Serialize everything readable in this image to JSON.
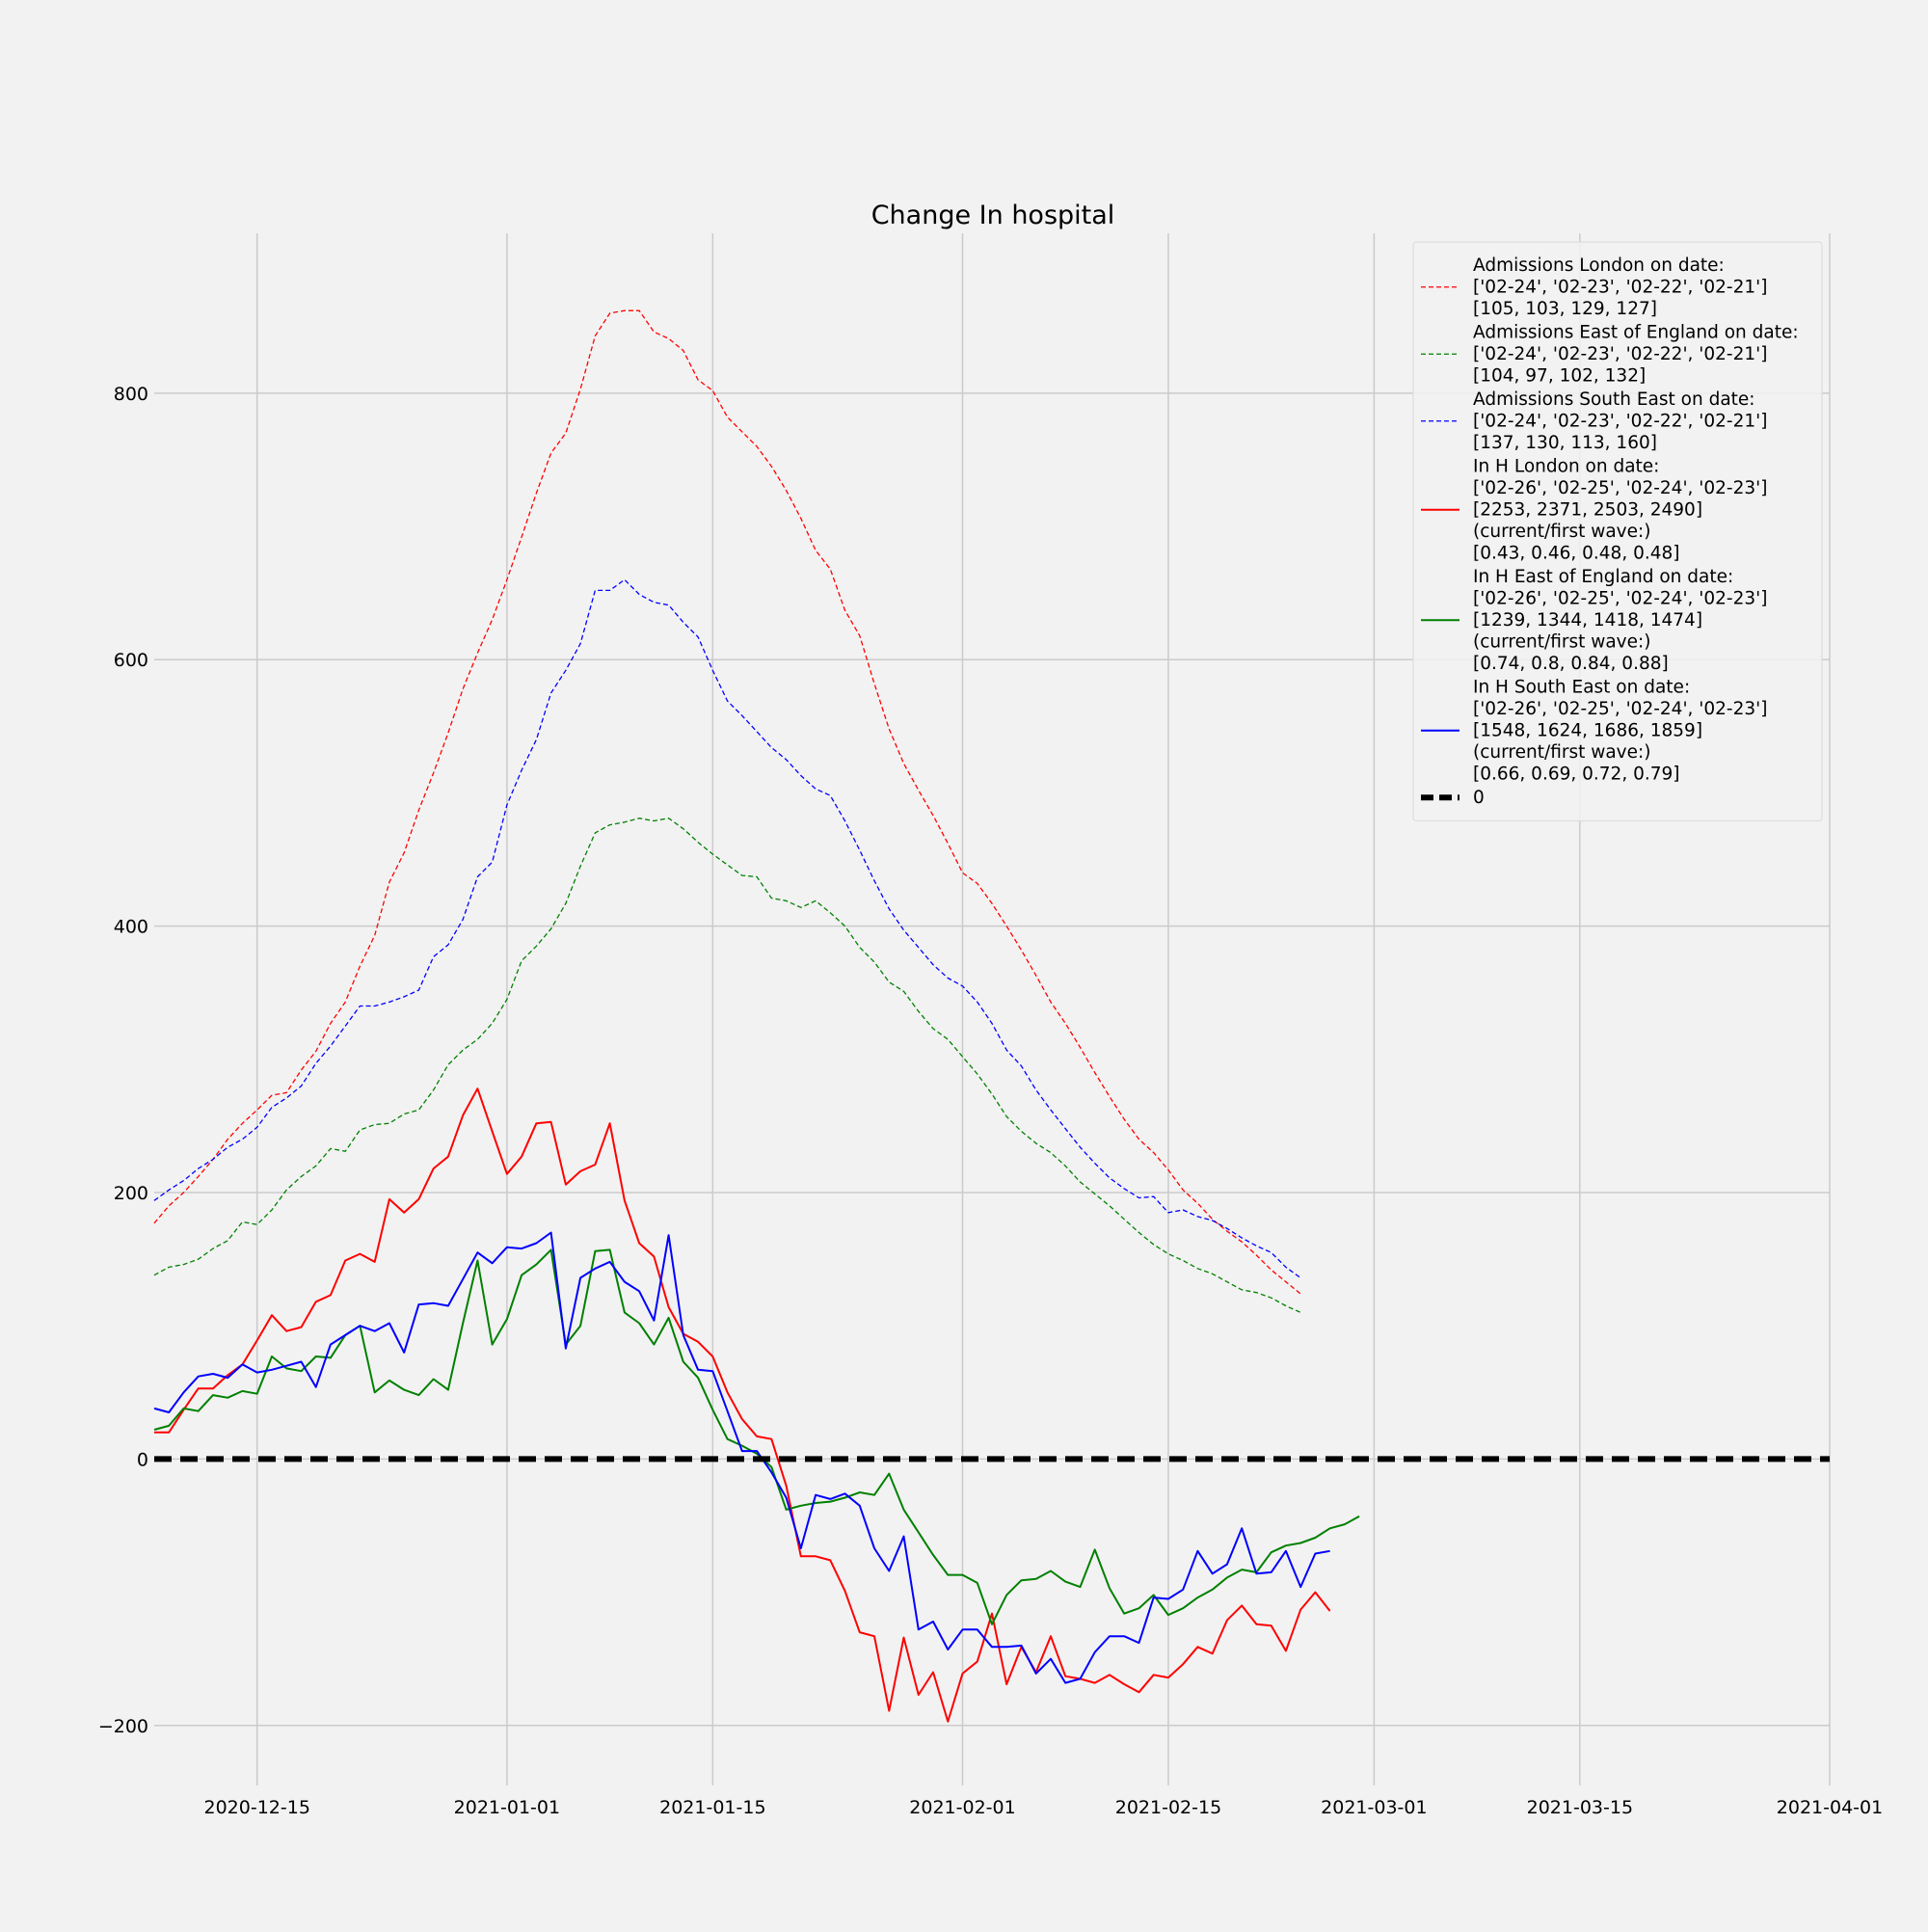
{
  "chart_data": {
    "type": "line",
    "title": "Change In hospital",
    "xlabel": "",
    "ylabel": "",
    "x_axis_type": "date",
    "x_range": [
      "2020-12-08",
      "2021-04-01"
    ],
    "ylim": [
      -245,
      920
    ],
    "x_ticks": [
      "2020-12-15",
      "2021-01-01",
      "2021-01-15",
      "2021-02-01",
      "2021-02-15",
      "2021-03-01",
      "2021-03-15",
      "2021-04-01"
    ],
    "y_ticks": [
      -200,
      0,
      200,
      400,
      600,
      800
    ],
    "y_tick_labels": [
      "−200",
      "0",
      "200",
      "400",
      "600",
      "800"
    ],
    "grid": true,
    "legend_position": "top-right",
    "background": "#f2f2f2",
    "series": [
      {
        "name": "Admissions London on date:\n['02-24', '02-23', '02-22', '02-21']\n[105, 103, 129, 127]",
        "color": "#ff0000",
        "line_style": "dashed",
        "start": "2020-12-08",
        "values": [
          177,
          190,
          200,
          212,
          225,
          240,
          252,
          262,
          273,
          275,
          292,
          306,
          327,
          343,
          370,
          393,
          433,
          455,
          487,
          515,
          545,
          578,
          605,
          630,
          660,
          692,
          725,
          755,
          770,
          803,
          843,
          860,
          862,
          862,
          846,
          841,
          832,
          810,
          802,
          782,
          771,
          760,
          745,
          727,
          706,
          682,
          668,
          637,
          618,
          582,
          548,
          522,
          502,
          483,
          462,
          440,
          432,
          417,
          400,
          382,
          363,
          343,
          327,
          309,
          290,
          272,
          255,
          240,
          230,
          217,
          202,
          192,
          180,
          171,
          163,
          153,
          142,
          133,
          124
        ]
      },
      {
        "name": "Admissions East of England on date:\n['02-24', '02-23', '02-22', '02-21']\n[104, 97, 102, 132]",
        "color": "#008000",
        "line_style": "dashed",
        "start": "2020-12-08",
        "values": [
          138,
          144,
          146,
          150,
          158,
          164,
          178,
          176,
          187,
          202,
          212,
          220,
          233,
          231,
          247,
          251,
          252,
          259,
          262,
          277,
          296,
          307,
          315,
          327,
          345,
          374,
          385,
          398,
          417,
          445,
          470,
          476,
          478,
          481,
          479,
          481,
          473,
          463,
          454,
          446,
          438,
          437,
          421,
          419,
          414,
          419,
          410,
          400,
          384,
          373,
          358,
          351,
          336,
          323,
          315,
          302,
          289,
          274,
          257,
          246,
          237,
          230,
          220,
          208,
          199,
          190,
          180,
          170,
          161,
          154,
          149,
          143,
          139,
          133,
          127,
          125,
          121,
          115,
          110
        ]
      },
      {
        "name": "Admissions South East on date:\n['02-24', '02-23', '02-22', '02-21']\n[137, 130, 113, 160]",
        "color": "#0000ff",
        "line_style": "dashed",
        "start": "2020-12-08",
        "values": [
          194,
          202,
          209,
          218,
          225,
          234,
          240,
          249,
          264,
          271,
          280,
          297,
          310,
          325,
          340,
          340,
          343,
          347,
          352,
          377,
          386,
          405,
          437,
          448,
          491,
          517,
          540,
          575,
          592,
          612,
          652,
          652,
          660,
          649,
          643,
          641,
          628,
          617,
          592,
          569,
          558,
          546,
          534,
          525,
          513,
          503,
          498,
          479,
          457,
          434,
          413,
          397,
          384,
          371,
          361,
          355,
          343,
          327,
          307,
          295,
          277,
          262,
          248,
          234,
          222,
          211,
          203,
          196,
          197,
          185,
          187,
          182,
          179,
          173,
          166,
          160,
          155,
          144,
          136
        ]
      },
      {
        "name": "In H London on date:\n['02-26', '02-25', '02-24', '02-23']\n[2253, 2371, 2503, 2490]\n(current/first wave:)\n[0.43, 0.46, 0.48, 0.48]",
        "color": "#ff0000",
        "line_style": "solid",
        "start": "2020-12-08",
        "values": [
          20,
          20,
          37,
          53,
          53,
          63,
          71,
          89,
          108,
          96,
          99,
          118,
          123,
          149,
          154,
          148,
          195,
          185,
          195,
          218,
          227,
          258,
          278,
          246,
          214,
          227,
          252,
          253,
          206,
          216,
          221,
          252,
          194,
          162,
          152,
          114,
          94,
          88,
          77,
          50,
          30,
          17,
          15,
          -20,
          -73,
          -73,
          -76,
          -99,
          -130,
          -133,
          -189,
          -134,
          -177,
          -160,
          -197,
          -161,
          -152,
          -116,
          -169,
          -141,
          -160,
          -133,
          -163,
          -165,
          -168,
          -162,
          -169,
          -175,
          -162,
          -164,
          -154,
          -141,
          -146,
          -121,
          -110,
          -124,
          -125,
          -144,
          -113,
          -100,
          -114
        ]
      },
      {
        "name": "In H East of England on date:\n['02-26', '02-25', '02-24', '02-23']\n[1239, 1344, 1418, 1474]\n(current/first wave:)\n[0.74, 0.8, 0.84, 0.88]",
        "color": "#008000",
        "line_style": "solid",
        "start": "2020-12-08",
        "values": [
          22,
          25,
          38,
          36,
          48,
          46,
          51,
          49,
          77,
          68,
          66,
          77,
          76,
          93,
          100,
          50,
          59,
          52,
          48,
          60,
          52,
          102,
          149,
          86,
          105,
          138,
          146,
          157,
          86,
          100,
          156,
          157,
          110,
          102,
          86,
          106,
          73,
          61,
          37,
          15,
          10,
          4,
          -6,
          -38,
          -35,
          -33,
          -32,
          -29,
          -25,
          -27,
          -11,
          -38,
          -55,
          -72,
          -87,
          -87,
          -93,
          -124,
          -102,
          -91,
          -90,
          -84,
          -92,
          -96,
          -68,
          -97,
          -116,
          -112,
          -102,
          -117,
          -112,
          -104,
          -98,
          -89,
          -83,
          -85,
          -70,
          -65,
          -63,
          -59,
          -52,
          -49,
          -43
        ]
      },
      {
        "name": "In H South East on date:\n['02-26', '02-25', '02-24', '02-23']\n[1548, 1624, 1686, 1859]\n(current/first wave:)\n[0.66, 0.69, 0.72, 0.79]",
        "color": "#0000ff",
        "line_style": "solid",
        "start": "2020-12-08",
        "values": [
          38,
          35,
          50,
          62,
          64,
          61,
          71,
          65,
          67,
          70,
          73,
          54,
          86,
          93,
          100,
          96,
          102,
          80,
          116,
          117,
          115,
          135,
          155,
          147,
          159,
          158,
          162,
          170,
          83,
          136,
          143,
          148,
          133,
          126,
          104,
          168,
          93,
          67,
          66,
          36,
          6,
          6,
          -10,
          -29,
          -67,
          -27,
          -30,
          -26,
          -35,
          -67,
          -84,
          -58,
          -128,
          -122,
          -143,
          -128,
          -128,
          -141,
          -141,
          -140,
          -161,
          -150,
          -168,
          -165,
          -145,
          -133,
          -133,
          -138,
          -104,
          -105,
          -98,
          -69,
          -86,
          -79,
          -52,
          -86,
          -85,
          -69,
          -96,
          -71,
          -69
        ]
      },
      {
        "name": "0",
        "color": "#000000",
        "line_style": "thick-dashed",
        "x": [
          "2020-12-08",
          "2021-04-01"
        ],
        "values": [
          0,
          0
        ]
      }
    ]
  }
}
